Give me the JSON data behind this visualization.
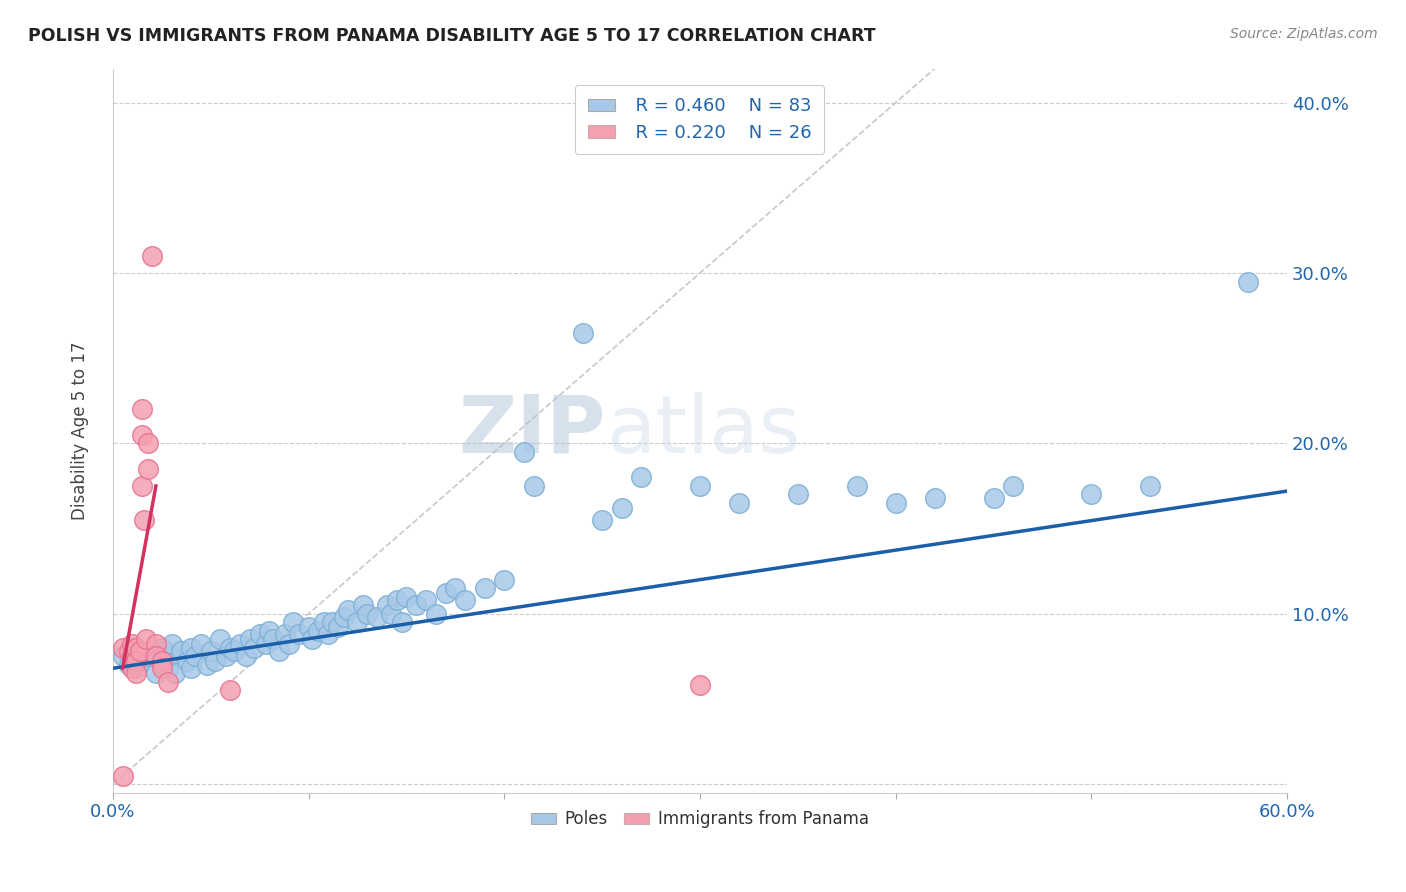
{
  "title": "POLISH VS IMMIGRANTS FROM PANAMA DISABILITY AGE 5 TO 17 CORRELATION CHART",
  "source": "Source: ZipAtlas.com",
  "ylabel": "Disability Age 5 to 17",
  "xlim": [
    0.0,
    0.6
  ],
  "ylim": [
    -0.005,
    0.42
  ],
  "xticks": [
    0.0,
    0.1,
    0.2,
    0.3,
    0.4,
    0.5,
    0.6
  ],
  "yticks": [
    0.0,
    0.1,
    0.2,
    0.3,
    0.4
  ],
  "legend_r1": "R = 0.460",
  "legend_n1": "N = 83",
  "legend_r2": "R = 0.220",
  "legend_n2": "N = 26",
  "blue_color": "#a8c8e8",
  "blue_edge_color": "#7aafd4",
  "pink_color": "#f4a0b0",
  "pink_edge_color": "#e87090",
  "blue_line_color": "#1a5fa8",
  "pink_line_color": "#d43060",
  "dashed_line_color": "#c8c8c8",
  "watermark_color": "#ccd8e8",
  "poles_scatter": [
    [
      0.005,
      0.075
    ],
    [
      0.008,
      0.07
    ],
    [
      0.01,
      0.08
    ],
    [
      0.012,
      0.068
    ],
    [
      0.015,
      0.072
    ],
    [
      0.018,
      0.075
    ],
    [
      0.02,
      0.078
    ],
    [
      0.022,
      0.065
    ],
    [
      0.025,
      0.07
    ],
    [
      0.025,
      0.08
    ],
    [
      0.028,
      0.068
    ],
    [
      0.03,
      0.075
    ],
    [
      0.03,
      0.082
    ],
    [
      0.032,
      0.065
    ],
    [
      0.035,
      0.078
    ],
    [
      0.038,
      0.072
    ],
    [
      0.04,
      0.08
    ],
    [
      0.04,
      0.068
    ],
    [
      0.042,
      0.075
    ],
    [
      0.045,
      0.082
    ],
    [
      0.048,
      0.07
    ],
    [
      0.05,
      0.078
    ],
    [
      0.052,
      0.072
    ],
    [
      0.055,
      0.085
    ],
    [
      0.058,
      0.075
    ],
    [
      0.06,
      0.08
    ],
    [
      0.062,
      0.078
    ],
    [
      0.065,
      0.082
    ],
    [
      0.068,
      0.075
    ],
    [
      0.07,
      0.085
    ],
    [
      0.072,
      0.08
    ],
    [
      0.075,
      0.088
    ],
    [
      0.078,
      0.082
    ],
    [
      0.08,
      0.09
    ],
    [
      0.082,
      0.085
    ],
    [
      0.085,
      0.078
    ],
    [
      0.088,
      0.088
    ],
    [
      0.09,
      0.082
    ],
    [
      0.092,
      0.095
    ],
    [
      0.095,
      0.088
    ],
    [
      0.1,
      0.092
    ],
    [
      0.102,
      0.085
    ],
    [
      0.105,
      0.09
    ],
    [
      0.108,
      0.095
    ],
    [
      0.11,
      0.088
    ],
    [
      0.112,
      0.095
    ],
    [
      0.115,
      0.092
    ],
    [
      0.118,
      0.098
    ],
    [
      0.12,
      0.102
    ],
    [
      0.125,
      0.095
    ],
    [
      0.128,
      0.105
    ],
    [
      0.13,
      0.1
    ],
    [
      0.135,
      0.098
    ],
    [
      0.14,
      0.105
    ],
    [
      0.142,
      0.1
    ],
    [
      0.145,
      0.108
    ],
    [
      0.148,
      0.095
    ],
    [
      0.15,
      0.11
    ],
    [
      0.155,
      0.105
    ],
    [
      0.16,
      0.108
    ],
    [
      0.165,
      0.1
    ],
    [
      0.17,
      0.112
    ],
    [
      0.175,
      0.115
    ],
    [
      0.18,
      0.108
    ],
    [
      0.19,
      0.115
    ],
    [
      0.2,
      0.12
    ],
    [
      0.21,
      0.195
    ],
    [
      0.215,
      0.175
    ],
    [
      0.24,
      0.265
    ],
    [
      0.25,
      0.155
    ],
    [
      0.26,
      0.162
    ],
    [
      0.27,
      0.18
    ],
    [
      0.3,
      0.175
    ],
    [
      0.32,
      0.165
    ],
    [
      0.35,
      0.17
    ],
    [
      0.38,
      0.175
    ],
    [
      0.4,
      0.165
    ],
    [
      0.42,
      0.168
    ],
    [
      0.45,
      0.168
    ],
    [
      0.46,
      0.175
    ],
    [
      0.5,
      0.17
    ],
    [
      0.53,
      0.175
    ],
    [
      0.58,
      0.295
    ]
  ],
  "panama_scatter": [
    [
      0.005,
      0.08
    ],
    [
      0.008,
      0.078
    ],
    [
      0.01,
      0.082
    ],
    [
      0.01,
      0.075
    ],
    [
      0.01,
      0.068
    ],
    [
      0.012,
      0.075
    ],
    [
      0.012,
      0.08
    ],
    [
      0.012,
      0.072
    ],
    [
      0.012,
      0.065
    ],
    [
      0.014,
      0.078
    ],
    [
      0.015,
      0.175
    ],
    [
      0.015,
      0.22
    ],
    [
      0.015,
      0.205
    ],
    [
      0.016,
      0.155
    ],
    [
      0.017,
      0.085
    ],
    [
      0.018,
      0.2
    ],
    [
      0.018,
      0.185
    ],
    [
      0.02,
      0.31
    ],
    [
      0.022,
      0.082
    ],
    [
      0.022,
      0.075
    ],
    [
      0.025,
      0.072
    ],
    [
      0.025,
      0.068
    ],
    [
      0.028,
      0.06
    ],
    [
      0.06,
      0.055
    ],
    [
      0.3,
      0.058
    ],
    [
      0.005,
      0.005
    ]
  ],
  "blue_trendline": [
    [
      0.0,
      0.068
    ],
    [
      0.6,
      0.172
    ]
  ],
  "pink_trendline": [
    [
      0.005,
      0.068
    ],
    [
      0.022,
      0.175
    ]
  ],
  "diagonal_line": [
    [
      0.0,
      0.0
    ],
    [
      0.42,
      0.42
    ]
  ]
}
